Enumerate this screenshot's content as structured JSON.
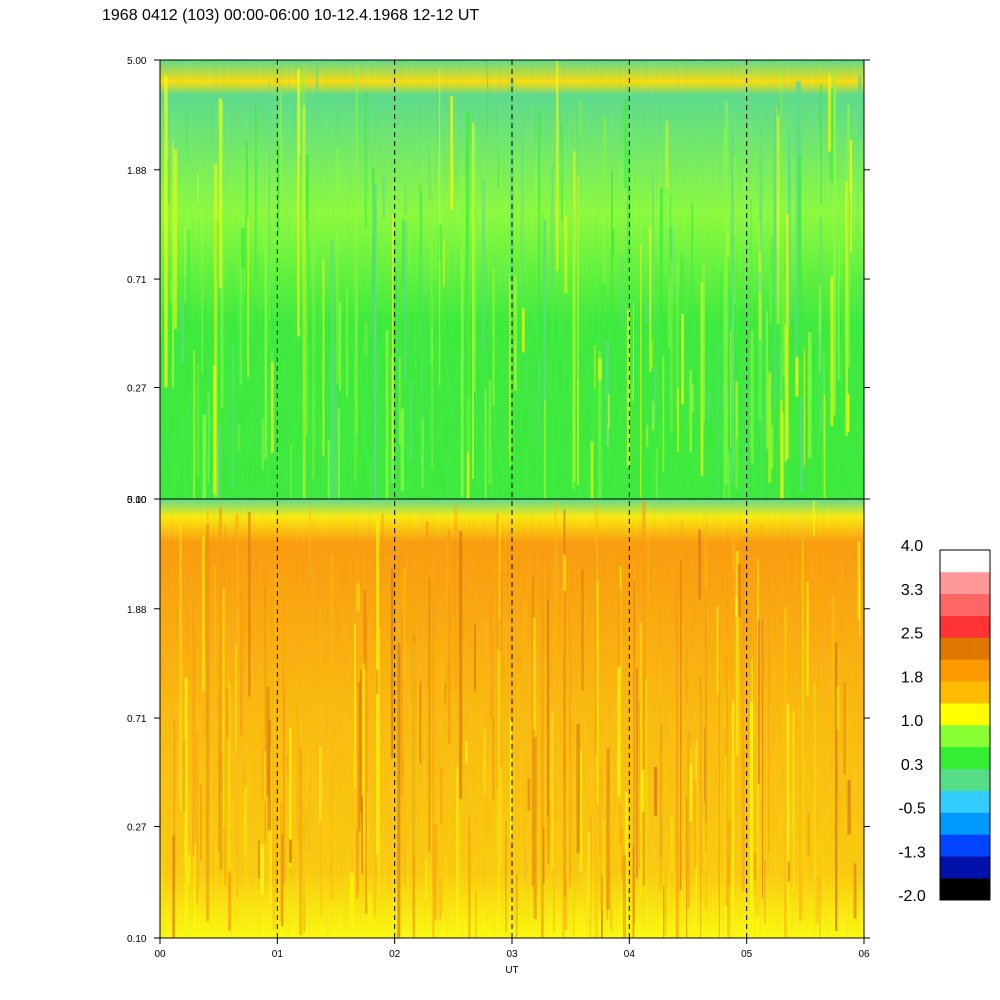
{
  "title": "1968 0412 (103) 00:00-06:00 10-12.4.1968  12-12 UT",
  "chart_data": {
    "type": "heatmap",
    "title": "1968 0412 (103) 00:00-06:00 10-12.4.1968  12-12 UT",
    "xlabel": "UT",
    "x_ticks": [
      "00",
      "01",
      "02",
      "03",
      "04",
      "05",
      "06"
    ],
    "xlim": [
      0,
      6
    ],
    "y_scale": "log",
    "ylim": [
      0.1,
      5.0
    ],
    "panels": [
      {
        "y_ticks": [
          "0.10",
          "0.27",
          "0.71",
          "1.88",
          "5.00"
        ],
        "dominant_colors": [
          "#33ee33",
          "#55dd88",
          "#88ff33",
          "#ffff00"
        ]
      },
      {
        "y_ticks": [
          "0.10",
          "0.27",
          "0.71",
          "1.88",
          "5.00"
        ],
        "dominant_colors": [
          "#ffbb00",
          "#ff9900",
          "#ffff00",
          "#dd7700"
        ]
      }
    ],
    "colorbar": {
      "tick_labels": [
        "4.0",
        "3.3",
        "2.5",
        "1.8",
        "1.0",
        "0.3",
        "-0.5",
        "-1.3",
        "-2.0"
      ],
      "colors": [
        "#000000",
        "#0011aa",
        "#0044ff",
        "#0099ff",
        "#33ccff",
        "#55dd88",
        "#33ee33",
        "#88ff33",
        "#ffff00",
        "#ffbb00",
        "#ff9900",
        "#dd7700",
        "#ff3333",
        "#ff6666",
        "#ff9999",
        "#ffffff"
      ]
    },
    "dashed_gridlines_at": [
      1,
      2,
      3,
      4,
      5
    ]
  }
}
